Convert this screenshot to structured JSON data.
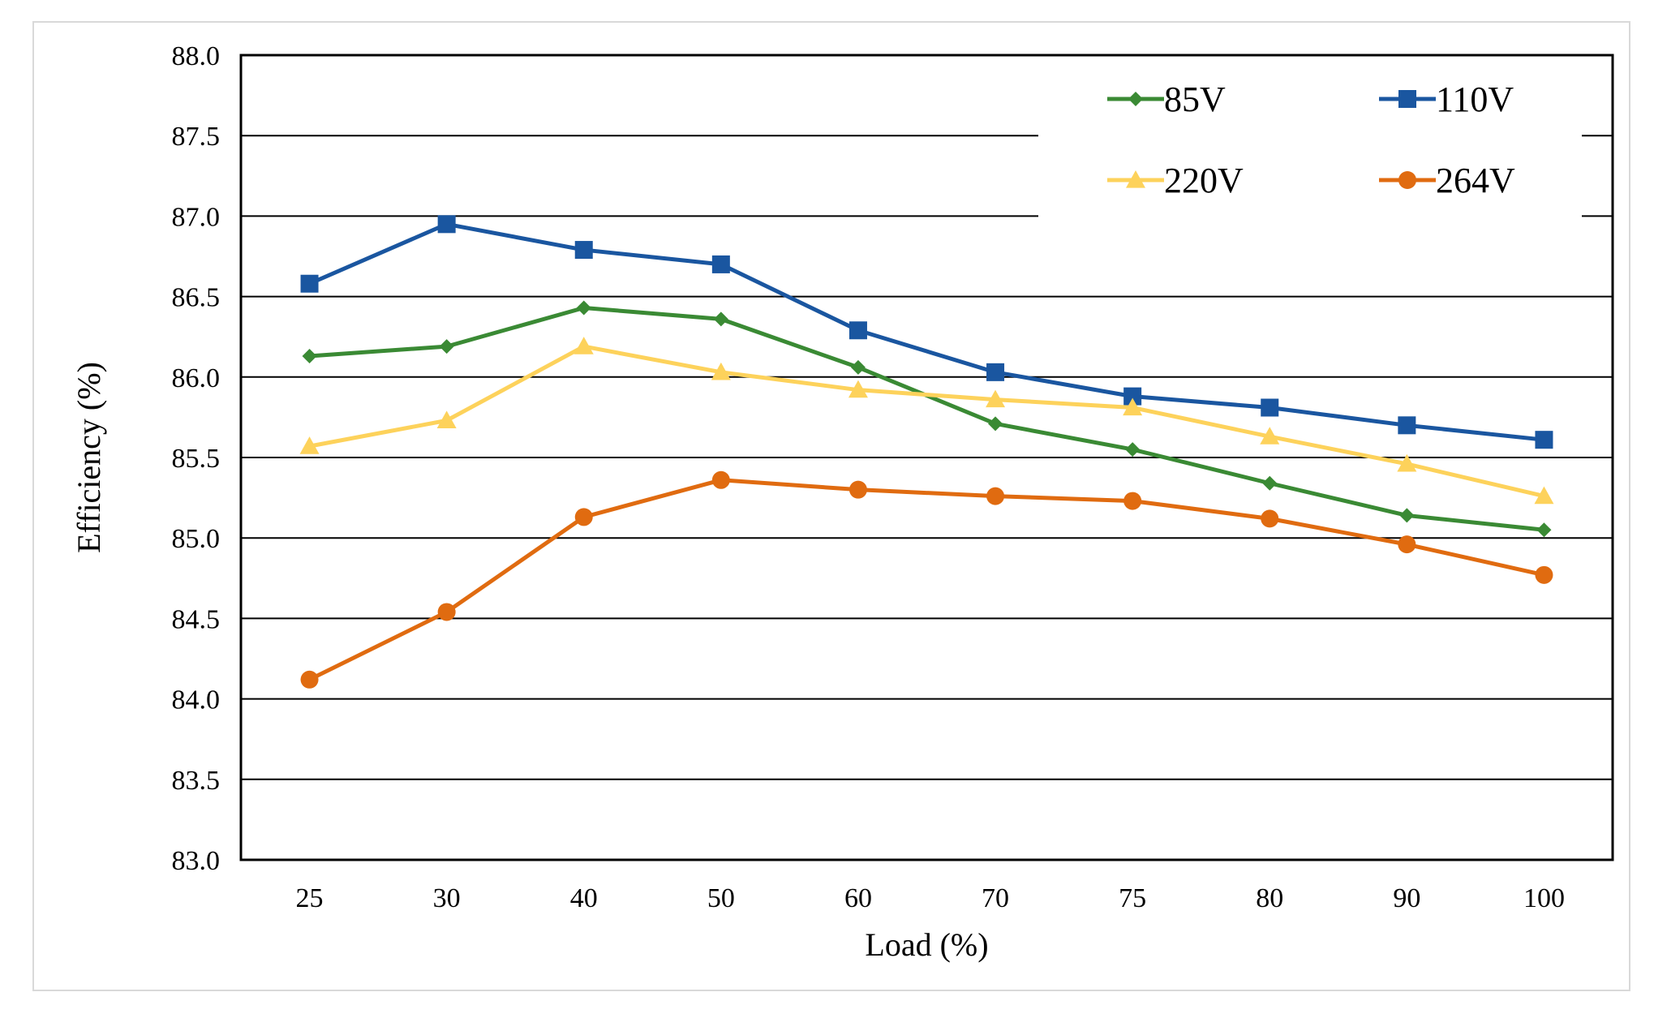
{
  "chart_data": {
    "type": "line",
    "title": "",
    "xlabel": "Load (%)",
    "ylabel": "Efficiency (%)",
    "categories": [
      "25",
      "30",
      "40",
      "50",
      "60",
      "70",
      "75",
      "80",
      "90",
      "100"
    ],
    "ylim": [
      83.0,
      88.0
    ],
    "yticks": [
      "83.0",
      "83.5",
      "84.0",
      "84.5",
      "85.0",
      "85.5",
      "86.0",
      "86.5",
      "87.0",
      "87.5",
      "88.0"
    ],
    "grid": true,
    "legend_position": "top-right",
    "series": [
      {
        "name": "85V",
        "color": "#3a8a34",
        "marker": "diamond",
        "values": [
          86.13,
          86.19,
          86.43,
          86.36,
          86.06,
          85.71,
          85.55,
          85.34,
          85.14,
          85.05
        ]
      },
      {
        "name": "110V",
        "color": "#1a56a0",
        "marker": "square",
        "values": [
          86.58,
          86.95,
          86.79,
          86.7,
          86.29,
          86.03,
          85.88,
          85.81,
          85.7,
          85.61
        ]
      },
      {
        "name": "220V",
        "color": "#fdd25b",
        "marker": "triangle",
        "values": [
          85.57,
          85.73,
          86.19,
          86.03,
          85.92,
          85.86,
          85.81,
          85.63,
          85.46,
          85.26
        ]
      },
      {
        "name": "264V",
        "color": "#e06b10",
        "marker": "circle",
        "values": [
          84.12,
          84.54,
          85.13,
          85.36,
          85.3,
          85.26,
          85.23,
          85.12,
          84.96,
          84.77
        ]
      }
    ]
  }
}
